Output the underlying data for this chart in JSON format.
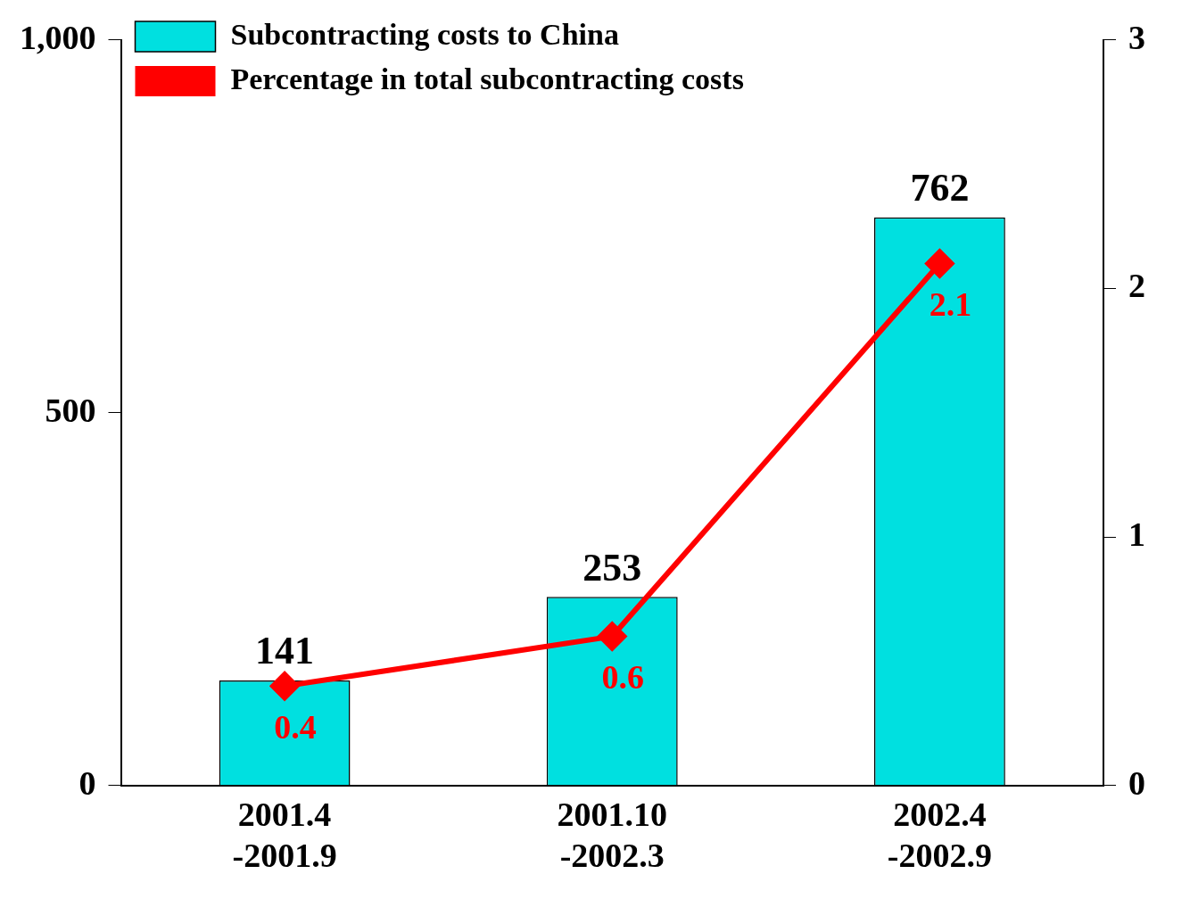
{
  "chart_data": {
    "type": "bar",
    "categories": [
      "2001.4\n-2001.9",
      "2001.10\n-2002.3",
      "2002.4\n-2002.9"
    ],
    "series": [
      {
        "name": "Subcontracting costs to China",
        "color": "#00e0e0",
        "values": [
          141,
          253,
          762
        ]
      },
      {
        "name": "Percentage in total subcontracting costs",
        "type": "line",
        "axis": "y2",
        "color": "#ff0000",
        "values": [
          0.4,
          0.6,
          2.1
        ]
      }
    ],
    "ylim": [
      0,
      1000
    ],
    "yticks": [
      0,
      {
        "value": 500,
        "label": "500"
      },
      {
        "value": 1000,
        "label": "1,000"
      }
    ],
    "y2lim": [
      0,
      3
    ],
    "y2ticks": [
      0,
      1,
      2,
      3
    ],
    "data_labels": true,
    "legend": "top left",
    "grid": false,
    "marker": "diamond",
    "line_style": "solid"
  }
}
